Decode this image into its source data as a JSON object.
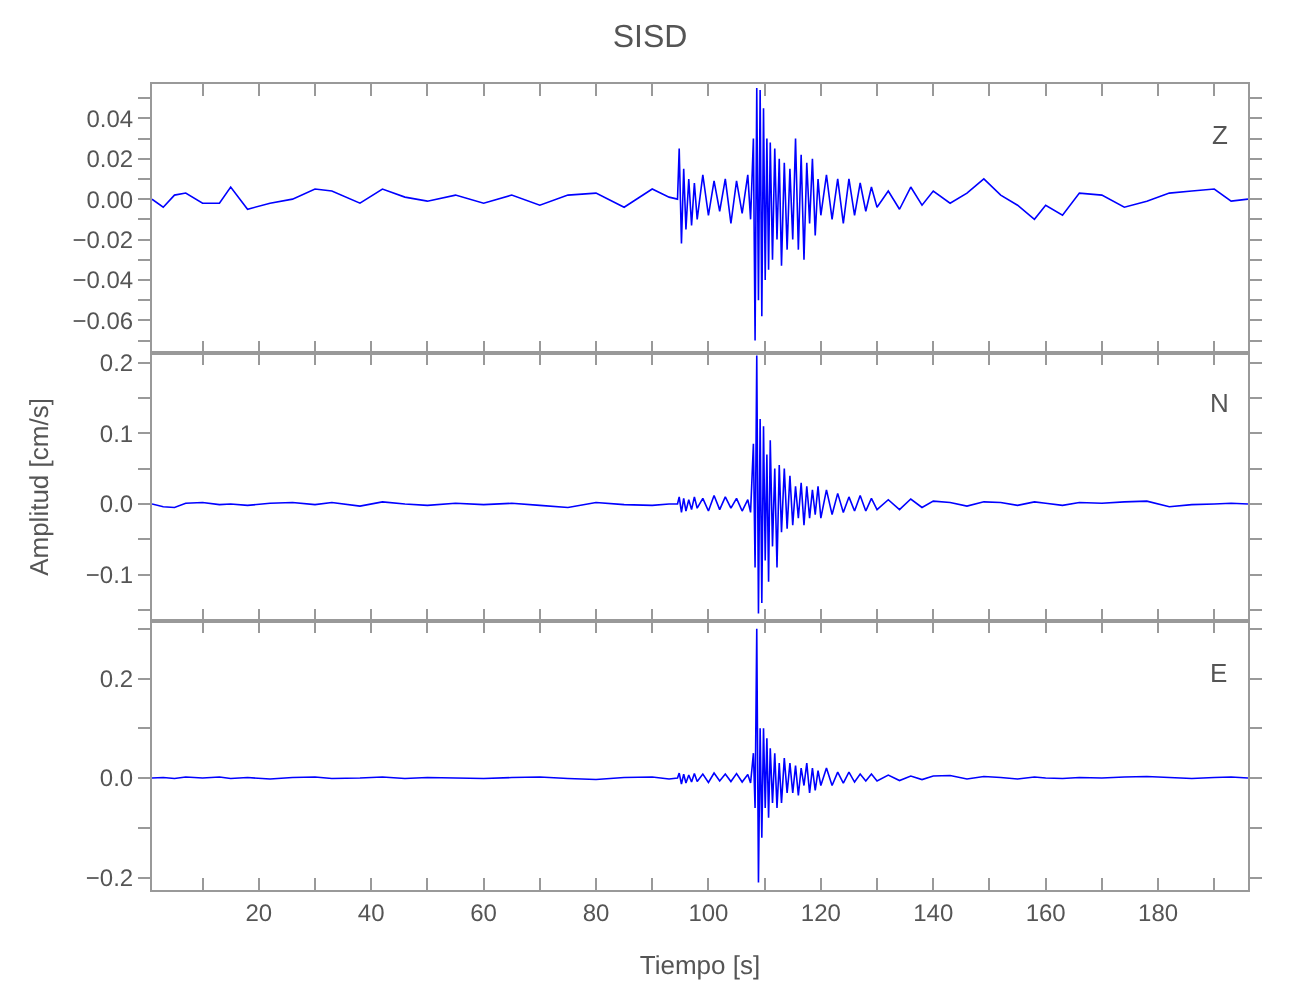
{
  "chart_data": [
    {
      "type": "line",
      "title": "SISD",
      "annotations": [
        "Z"
      ],
      "tick_labels": "y",
      "xlim": [
        1,
        196
      ],
      "xticks": [
        {
          "value": 10,
          "label": null
        },
        {
          "value": 20,
          "label": null
        },
        {
          "value": 30,
          "label": null
        },
        {
          "value": 40,
          "label": null
        },
        {
          "value": 50,
          "label": null
        },
        {
          "value": 60,
          "label": null
        },
        {
          "value": 70,
          "label": null
        },
        {
          "value": 80,
          "label": null
        },
        {
          "value": 90,
          "label": null
        },
        {
          "value": 100,
          "label": null
        },
        {
          "value": 110,
          "label": null
        },
        {
          "value": 120,
          "label": null
        },
        {
          "value": 130,
          "label": null
        },
        {
          "value": 140,
          "label": null
        },
        {
          "value": 150,
          "label": null
        },
        {
          "value": 160,
          "label": null
        },
        {
          "value": 170,
          "label": null
        },
        {
          "value": 180,
          "label": null
        },
        {
          "value": 190,
          "label": null
        }
      ],
      "ylim": [
        -0.076,
        0.057
      ],
      "yticks": [
        {
          "value": -0.07,
          "label": null
        },
        {
          "value": -0.06,
          "label": "−0.06"
        },
        {
          "value": -0.05,
          "label": null
        },
        {
          "value": -0.04,
          "label": "−0.04"
        },
        {
          "value": -0.03,
          "label": null
        },
        {
          "value": -0.02,
          "label": "−0.02"
        },
        {
          "value": -0.01,
          "label": null
        },
        {
          "value": 0,
          "label": "0.00"
        },
        {
          "value": 0.01,
          "label": null
        },
        {
          "value": 0.02,
          "label": "0.02"
        },
        {
          "value": 0.03,
          "label": null
        },
        {
          "value": 0.04,
          "label": "0.04"
        },
        {
          "value": 0.05,
          "label": null
        }
      ],
      "x": [
        1,
        3,
        5,
        7,
        10,
        13,
        15,
        18,
        22,
        26,
        30,
        33,
        38,
        42,
        46,
        50,
        55,
        60,
        65,
        70,
        75,
        80,
        85,
        90,
        93,
        94.5,
        94.8,
        95.2,
        95.6,
        96,
        96.5,
        97,
        97.5,
        98,
        99,
        100,
        101,
        102,
        103,
        104,
        105,
        106,
        107,
        107.5,
        108,
        108.3,
        108.6,
        108.9,
        109.2,
        109.5,
        109.8,
        110.1,
        110.4,
        110.7,
        111,
        111.4,
        111.8,
        112.2,
        112.6,
        113,
        113.5,
        114,
        114.5,
        115,
        115.5,
        116,
        116.5,
        117,
        117.5,
        118,
        118.5,
        119,
        119.5,
        120,
        121,
        122,
        123,
        124,
        125,
        126,
        127,
        128,
        129,
        130,
        132,
        134,
        136,
        138,
        140,
        143,
        146,
        149,
        152,
        155,
        158,
        160,
        163,
        166,
        170,
        174,
        178,
        182,
        186,
        190,
        193,
        196
      ],
      "series": [
        {
          "color": "#0000ff",
          "values": [
            0.0,
            -0.004,
            0.002,
            0.003,
            -0.002,
            -0.002,
            0.006,
            -0.005,
            -0.002,
            0.0,
            0.005,
            0.004,
            -0.002,
            0.005,
            0.001,
            -0.001,
            0.002,
            -0.002,
            0.002,
            -0.003,
            0.002,
            0.003,
            -0.004,
            0.005,
            0.001,
            0.0,
            0.025,
            -0.022,
            0.015,
            -0.015,
            0.01,
            -0.013,
            0.008,
            -0.01,
            0.012,
            -0.008,
            0.009,
            -0.006,
            0.01,
            -0.012,
            0.009,
            -0.007,
            0.012,
            -0.01,
            0.03,
            -0.07,
            0.055,
            -0.05,
            0.054,
            -0.058,
            0.045,
            -0.04,
            0.03,
            -0.035,
            0.028,
            -0.03,
            0.025,
            -0.02,
            0.02,
            -0.033,
            0.018,
            -0.025,
            0.015,
            -0.02,
            0.03,
            -0.025,
            0.022,
            -0.03,
            0.018,
            -0.012,
            0.02,
            -0.018,
            0.01,
            -0.008,
            0.012,
            -0.01,
            0.01,
            -0.012,
            0.01,
            -0.008,
            0.008,
            -0.006,
            0.006,
            -0.004,
            0.004,
            -0.005,
            0.006,
            -0.003,
            0.004,
            -0.002,
            0.003,
            0.01,
            0.002,
            -0.003,
            -0.01,
            -0.003,
            -0.008,
            0.003,
            0.002,
            -0.004,
            -0.001,
            0.003,
            0.004,
            0.005,
            -0.001,
            0.0
          ]
        }
      ]
    },
    {
      "type": "line",
      "ylabel": "Amplitud [cm/s]",
      "annotations": [
        "N"
      ],
      "tick_labels": "y",
      "xlim": [
        1,
        196
      ],
      "xticks": [
        {
          "value": 10,
          "label": null
        },
        {
          "value": 20,
          "label": null
        },
        {
          "value": 30,
          "label": null
        },
        {
          "value": 40,
          "label": null
        },
        {
          "value": 50,
          "label": null
        },
        {
          "value": 60,
          "label": null
        },
        {
          "value": 70,
          "label": null
        },
        {
          "value": 80,
          "label": null
        },
        {
          "value": 90,
          "label": null
        },
        {
          "value": 100,
          "label": null
        },
        {
          "value": 110,
          "label": null
        },
        {
          "value": 120,
          "label": null
        },
        {
          "value": 130,
          "label": null
        },
        {
          "value": 140,
          "label": null
        },
        {
          "value": 150,
          "label": null
        },
        {
          "value": 160,
          "label": null
        },
        {
          "value": 170,
          "label": null
        },
        {
          "value": 180,
          "label": null
        },
        {
          "value": 190,
          "label": null
        }
      ],
      "ylim": [
        -0.166,
        0.214
      ],
      "yticks": [
        {
          "value": -0.15,
          "label": null
        },
        {
          "value": -0.1,
          "label": "−0.1"
        },
        {
          "value": -0.05,
          "label": null
        },
        {
          "value": 0,
          "label": "0.0"
        },
        {
          "value": 0.05,
          "label": null
        },
        {
          "value": 0.1,
          "label": "0.1"
        },
        {
          "value": 0.15,
          "label": null
        },
        {
          "value": 0.2,
          "label": "0.2"
        }
      ],
      "x": [
        1,
        3,
        5,
        7,
        10,
        13,
        15,
        18,
        22,
        26,
        30,
        33,
        38,
        42,
        46,
        50,
        55,
        60,
        65,
        70,
        75,
        80,
        85,
        90,
        93,
        94.5,
        94.8,
        95.2,
        95.6,
        96,
        96.5,
        97,
        97.5,
        98,
        99,
        100,
        101,
        102,
        103,
        104,
        105,
        106,
        107,
        107.5,
        108,
        108.3,
        108.6,
        108.9,
        109.2,
        109.5,
        109.8,
        110.1,
        110.4,
        110.7,
        111,
        111.4,
        111.8,
        112.2,
        112.6,
        113,
        113.5,
        114,
        114.5,
        115,
        115.5,
        116,
        116.5,
        117,
        117.5,
        118,
        118.5,
        119,
        119.5,
        120,
        121,
        122,
        123,
        124,
        125,
        126,
        127,
        128,
        129,
        130,
        132,
        134,
        136,
        138,
        140,
        143,
        146,
        149,
        152,
        155,
        158,
        160,
        163,
        166,
        170,
        174,
        178,
        182,
        186,
        190,
        193,
        196
      ],
      "series": [
        {
          "color": "#0000ff",
          "values": [
            0.0,
            -0.004,
            -0.005,
            0.001,
            0.002,
            -0.001,
            0.0,
            -0.002,
            0.001,
            0.002,
            -0.001,
            0.002,
            -0.003,
            0.003,
            0.0,
            -0.002,
            0.001,
            -0.001,
            0.001,
            -0.002,
            -0.005,
            0.002,
            -0.001,
            -0.002,
            0.0,
            0.0,
            0.01,
            -0.012,
            0.008,
            -0.01,
            0.006,
            -0.008,
            0.01,
            -0.006,
            0.008,
            -0.01,
            0.012,
            -0.008,
            0.01,
            -0.006,
            0.008,
            -0.01,
            0.006,
            -0.012,
            0.085,
            -0.09,
            0.21,
            -0.155,
            0.12,
            -0.14,
            0.11,
            -0.08,
            0.07,
            -0.11,
            0.09,
            -0.06,
            0.05,
            -0.09,
            0.055,
            -0.04,
            0.05,
            -0.035,
            0.04,
            -0.03,
            0.025,
            -0.02,
            0.03,
            -0.03,
            0.025,
            -0.02,
            0.02,
            -0.015,
            0.025,
            -0.02,
            0.02,
            -0.015,
            0.015,
            -0.012,
            0.01,
            -0.01,
            0.012,
            -0.01,
            0.008,
            -0.008,
            0.006,
            -0.008,
            0.007,
            -0.005,
            0.004,
            0.002,
            -0.003,
            0.003,
            0.002,
            -0.002,
            0.003,
            0.001,
            -0.002,
            0.002,
            0.001,
            0.003,
            0.004,
            -0.004,
            -0.001,
            0.0,
            0.001,
            0.0
          ]
        }
      ]
    },
    {
      "type": "line",
      "xlabel": "Tiempo [s]",
      "annotations": [
        "E"
      ],
      "xlim": [
        1,
        196
      ],
      "xticks": [
        {
          "value": 10,
          "label": null
        },
        20,
        {
          "value": 30,
          "label": null
        },
        40,
        {
          "value": 50,
          "label": null
        },
        60,
        {
          "value": 70,
          "label": null
        },
        80,
        {
          "value": 90,
          "label": null
        },
        100,
        {
          "value": 110,
          "label": null
        },
        120,
        {
          "value": 130,
          "label": null
        },
        140,
        {
          "value": 150,
          "label": null
        },
        160,
        {
          "value": 170,
          "label": null
        },
        180,
        {
          "value": 190,
          "label": null
        }
      ],
      "ylim": [
        -0.225,
        0.315
      ],
      "yticks": [
        {
          "value": -0.2,
          "label": "−0.2"
        },
        {
          "value": -0.1,
          "label": null
        },
        {
          "value": 0,
          "label": "0.0"
        },
        {
          "value": 0.1,
          "label": null
        },
        {
          "value": 0.2,
          "label": "0.2"
        },
        {
          "value": 0.3,
          "label": null
        }
      ],
      "x": [
        1,
        3,
        5,
        7,
        10,
        13,
        15,
        18,
        22,
        26,
        30,
        33,
        38,
        42,
        46,
        50,
        55,
        60,
        65,
        70,
        75,
        80,
        85,
        90,
        93,
        94.5,
        94.8,
        95.2,
        95.6,
        96,
        96.5,
        97,
        97.5,
        98,
        99,
        100,
        101,
        102,
        103,
        104,
        105,
        106,
        107,
        107.5,
        108,
        108.3,
        108.6,
        108.9,
        109.2,
        109.5,
        109.8,
        110.1,
        110.4,
        110.7,
        111,
        111.4,
        111.8,
        112.2,
        112.6,
        113,
        113.5,
        114,
        114.5,
        115,
        115.5,
        116,
        116.5,
        117,
        117.5,
        118,
        118.5,
        119,
        119.5,
        120,
        121,
        122,
        123,
        124,
        125,
        126,
        127,
        128,
        129,
        130,
        132,
        134,
        136,
        138,
        140,
        143,
        146,
        149,
        152,
        155,
        158,
        160,
        163,
        166,
        170,
        174,
        178,
        182,
        186,
        190,
        193,
        196
      ],
      "series": [
        {
          "color": "#0000ff",
          "values": [
            0.0,
            0.001,
            -0.001,
            0.002,
            0.0,
            0.002,
            -0.001,
            0.001,
            -0.002,
            0.001,
            0.002,
            -0.001,
            0.0,
            0.002,
            -0.001,
            0.001,
            0.0,
            -0.001,
            0.001,
            0.002,
            -0.001,
            -0.003,
            0.001,
            0.002,
            -0.002,
            0.0,
            0.01,
            -0.012,
            0.008,
            -0.01,
            0.006,
            -0.008,
            0.009,
            -0.007,
            0.008,
            -0.009,
            0.01,
            -0.006,
            0.008,
            -0.007,
            0.009,
            -0.008,
            0.007,
            -0.01,
            0.05,
            -0.06,
            0.3,
            -0.21,
            0.1,
            -0.12,
            0.1,
            -0.06,
            0.08,
            -0.08,
            0.06,
            -0.05,
            0.05,
            -0.06,
            0.03,
            -0.05,
            0.04,
            -0.03,
            0.03,
            -0.03,
            0.025,
            -0.035,
            0.02,
            -0.015,
            0.03,
            -0.03,
            0.02,
            -0.025,
            0.015,
            -0.015,
            0.02,
            -0.015,
            0.012,
            -0.01,
            0.012,
            -0.008,
            0.008,
            -0.006,
            0.008,
            -0.006,
            0.006,
            -0.005,
            0.004,
            -0.003,
            0.004,
            0.005,
            -0.002,
            0.003,
            0.001,
            -0.002,
            0.002,
            0.0,
            -0.001,
            0.001,
            0.0,
            0.002,
            0.003,
            0.001,
            -0.001,
            0.001,
            0.002,
            0.0
          ]
        }
      ]
    }
  ]
}
